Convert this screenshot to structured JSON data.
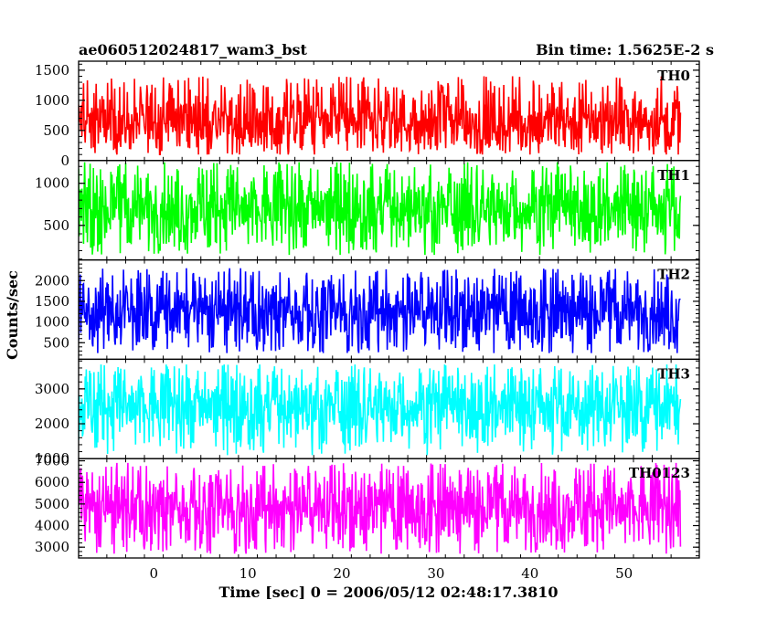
{
  "chart_data": {
    "type": "line",
    "title_left": "ae060512024817_wam3_bst",
    "title_right": "Bin time: 1.5625E-2 s",
    "xlabel": "Time [sec] 0 = 2006/05/12 02:48:17.3810",
    "ylabel": "Counts/sec",
    "xlim": [
      -8,
      58
    ],
    "x_data_range": [
      -8.0,
      56.0
    ],
    "x_ticks": [
      0,
      10,
      20,
      30,
      40,
      50
    ],
    "x_tick_labels": [
      "0",
      "10",
      "20",
      "30",
      "40",
      "50"
    ],
    "grid": false,
    "panels": [
      {
        "name": "TH0",
        "color": "#ff0000",
        "ylim": [
          0,
          1650
        ],
        "ticks": [
          0,
          500,
          1000,
          1500
        ],
        "tick_labels": [
          "0",
          "500",
          "1000",
          "1500"
        ],
        "mean": 650,
        "low": 100,
        "high": 1400
      },
      {
        "name": "TH1",
        "color": "#00ff00",
        "ylim": [
          90,
          1270
        ],
        "ticks": [
          500,
          1000
        ],
        "tick_labels": [
          "500",
          "1000"
        ],
        "mean": 700,
        "low": 150,
        "high": 1250
      },
      {
        "name": "TH2",
        "color": "#0000ff",
        "ylim": [
          100,
          2500
        ],
        "ticks": [
          500,
          1000,
          1500,
          2000
        ],
        "tick_labels": [
          "500",
          "1000",
          "1500",
          "2000"
        ],
        "mean": 1250,
        "low": 250,
        "high": 2300
      },
      {
        "name": "TH3",
        "color": "#00ffff",
        "ylim": [
          1000,
          3850
        ],
        "ticks": [
          1000,
          2000,
          3000
        ],
        "tick_labels": [
          "1000",
          "2000",
          "3000"
        ],
        "mean": 2500,
        "low": 1100,
        "high": 3700
      },
      {
        "name": "TH0123",
        "color": "#ff00ff",
        "ylim": [
          2500,
          7100
        ],
        "ticks": [
          3000,
          4000,
          5000,
          6000,
          7000
        ],
        "tick_labels": [
          "3000",
          "4000",
          "5000",
          "6000",
          "7000"
        ],
        "mean": 4800,
        "low": 2700,
        "high": 6900
      }
    ]
  }
}
